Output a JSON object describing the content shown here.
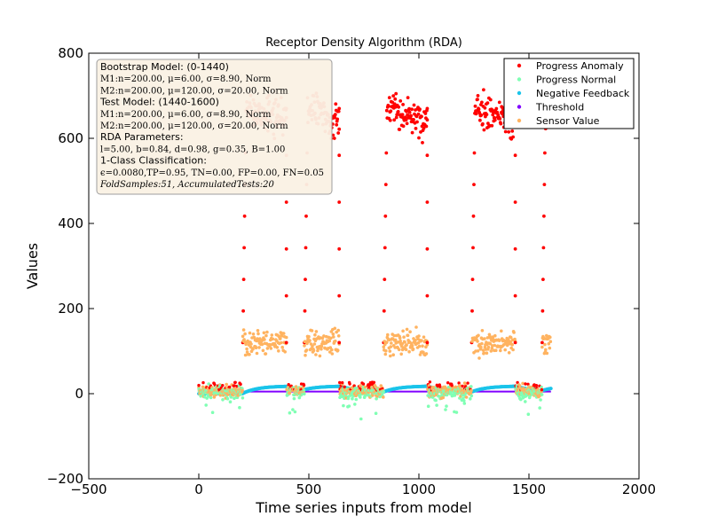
{
  "chart_data": {
    "type": "scatter",
    "title": "Receptor Density Algorithm (RDA)",
    "xlabel": "Time series inputs from model",
    "ylabel": "Values",
    "xlim": [
      -500,
      2000
    ],
    "ylim": [
      -200,
      800
    ],
    "xticks": [
      -500,
      0,
      500,
      1000,
      1500,
      2000
    ],
    "yticks": [
      -200,
      0,
      200,
      400,
      600,
      800
    ],
    "xtick_labels": [
      "−500",
      "0",
      "500",
      "1000",
      "1500",
      "2000"
    ],
    "ytick_labels": [
      "−200",
      "0",
      "200",
      "400",
      "600",
      "800"
    ],
    "grid": false,
    "legend_position": "top-right",
    "legend": [
      {
        "name": "Progress Anomaly",
        "color": "#ff0000"
      },
      {
        "name": "Progress Normal",
        "color": "#80ffb4"
      },
      {
        "name": "Negative Feedback",
        "color": "#1ac4ea"
      },
      {
        "name": "Threshold",
        "color": "#8000ff"
      },
      {
        "name": "Sensor Value",
        "color": "#ffb360"
      }
    ],
    "info_box": {
      "position": "top-left",
      "lines": [
        {
          "text": "Bootstrap Model: (0-1440)",
          "style": "sans"
        },
        {
          "text": "M1:n=200.00, μ=6.00, σ=8.90, Norm",
          "style": "serif"
        },
        {
          "text": "M2:n=200.00, μ=120.00, σ=20.00, Norm",
          "style": "serif"
        },
        {
          "text": "Test Model: (1440-1600)",
          "style": "sans"
        },
        {
          "text": "M1:n=200.00, μ=6.00, σ=8.90, Norm",
          "style": "serif"
        },
        {
          "text": "M2:n=200.00, μ=120.00, σ=20.00, Norm",
          "style": "serif"
        },
        {
          "text": "RDA Parameters:",
          "style": "sans"
        },
        {
          "text": "l=5.00, b=0.84, d=0.98, g=0.35, B=1.00",
          "style": "serif"
        },
        {
          "text": "1-Class Classification:",
          "style": "sans"
        },
        {
          "text": "ϵ=0.0080,TP=0.95, TN=0.00, FP=0.00, FN=0.05",
          "style": "serif"
        },
        {
          "text": "FoldSamples:51, AccumulatedTests:20",
          "style": "serif-italic"
        }
      ]
    },
    "segments": [
      {
        "type": "normal",
        "x_start": 0,
        "x_end": 200,
        "mean": 6
      },
      {
        "type": "anomaly",
        "x_start": 200,
        "x_end": 400,
        "mean": 120
      },
      {
        "type": "normal",
        "x_start": 400,
        "x_end": 480,
        "mean": 6
      },
      {
        "type": "anomaly",
        "x_start": 480,
        "x_end": 640,
        "mean": 120
      },
      {
        "type": "normal",
        "x_start": 640,
        "x_end": 840,
        "mean": 6
      },
      {
        "type": "anomaly",
        "x_start": 840,
        "x_end": 1040,
        "mean": 120
      },
      {
        "type": "normal",
        "x_start": 1040,
        "x_end": 1240,
        "mean": 6
      },
      {
        "type": "anomaly",
        "x_start": 1240,
        "x_end": 1440,
        "mean": 120
      },
      {
        "type": "normal",
        "x_start": 1440,
        "x_end": 1560,
        "mean": 6
      },
      {
        "type": "anomaly",
        "x_start": 1560,
        "x_end": 1600,
        "mean": 120
      }
    ],
    "threshold_value": 5,
    "anomaly_progress_level": 670,
    "negative_feedback_max": 18
  }
}
